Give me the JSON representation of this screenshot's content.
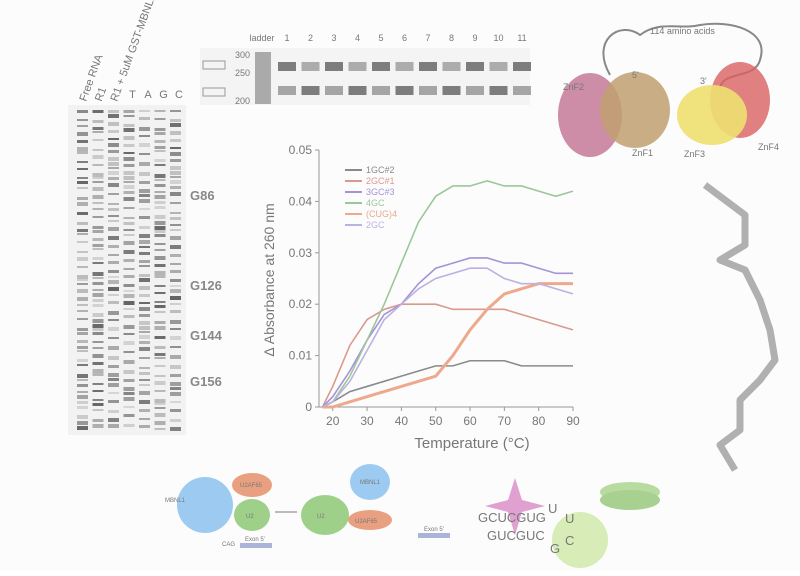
{
  "chart_data": {
    "type": "line",
    "xlabel": "Temperature (°C)",
    "ylabel": "Δ Absorbance at 260 nm",
    "x": [
      17,
      20,
      25,
      30,
      35,
      40,
      45,
      50,
      55,
      60,
      65,
      70,
      75,
      80,
      85,
      90
    ],
    "series": [
      {
        "name": "1GC#2",
        "color": "#8a8a8a",
        "values": [
          0,
          0.001,
          0.003,
          0.004,
          0.005,
          0.006,
          0.007,
          0.008,
          0.008,
          0.009,
          0.009,
          0.009,
          0.008,
          0.008,
          0.008,
          0.008
        ]
      },
      {
        "name": "2GC#1",
        "color": "#d99a8e",
        "values": [
          0,
          0.004,
          0.012,
          0.017,
          0.019,
          0.02,
          0.02,
          0.02,
          0.019,
          0.019,
          0.019,
          0.019,
          0.018,
          0.017,
          0.016,
          0.015
        ]
      },
      {
        "name": "3GC#3",
        "color": "#a494d6",
        "values": [
          0,
          0.002,
          0.007,
          0.013,
          0.018,
          0.02,
          0.024,
          0.027,
          0.028,
          0.029,
          0.029,
          0.028,
          0.028,
          0.027,
          0.026,
          0.026
        ]
      },
      {
        "name": "4GC",
        "color": "#9cc79a",
        "values": [
          0,
          0.001,
          0.006,
          0.013,
          0.02,
          0.028,
          0.036,
          0.041,
          0.043,
          0.043,
          0.044,
          0.043,
          0.043,
          0.042,
          0.041,
          0.042
        ]
      },
      {
        "name": "(CUG)4",
        "color": "#eea88c",
        "values": [
          0,
          0,
          0.001,
          0.002,
          0.003,
          0.004,
          0.005,
          0.006,
          0.01,
          0.015,
          0.019,
          0.022,
          0.023,
          0.024,
          0.024,
          0.024
        ]
      },
      {
        "name": "2GC",
        "color": "#bdb0e2",
        "values": [
          0,
          0.001,
          0.005,
          0.011,
          0.017,
          0.02,
          0.023,
          0.025,
          0.026,
          0.027,
          0.027,
          0.025,
          0.024,
          0.024,
          0.023,
          0.022
        ]
      }
    ],
    "xlim": [
      16,
      90
    ],
    "xticks": [
      20,
      30,
      40,
      50,
      60,
      70,
      80,
      90
    ],
    "ylim": [
      0,
      0.05
    ],
    "yticks": [
      0,
      0.01,
      0.02,
      0.03,
      0.04,
      0.05
    ]
  },
  "gel": {
    "lanes": [
      "Free RNA",
      "R1",
      "R1 + 5uM GST-MBNL1",
      "T",
      "A",
      "G",
      "C"
    ],
    "markers": [
      "G86",
      "G126",
      "G144",
      "G156"
    ]
  },
  "ladder_gel": {
    "title": "ladder",
    "lanes": [
      "1",
      "2",
      "3",
      "4",
      "5",
      "6",
      "7",
      "8",
      "9",
      "10",
      "11"
    ],
    "sizes": [
      "300",
      "250",
      "200"
    ]
  },
  "protein": {
    "loop": "114 amino acids",
    "domains": [
      "ZnF2",
      "ZnF1",
      "ZnF3",
      "ZnF4"
    ],
    "ends": [
      "5'",
      "3'"
    ]
  },
  "splicing_diagram": {
    "labels": [
      "MBNL1",
      "U2AF65",
      "U2",
      "Exon 5'",
      "CAG",
      "U2",
      "MBNL1",
      "U2AF65",
      "Exon 5'"
    ]
  },
  "rna": {
    "top": "GCUCGUG",
    "bottom": "GUCGUC",
    "loop": [
      "U",
      "U",
      "G",
      "C"
    ]
  }
}
